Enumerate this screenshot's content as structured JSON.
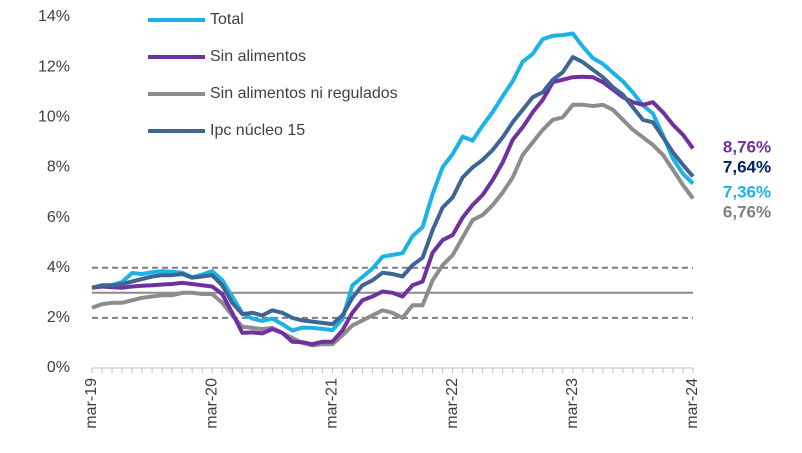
{
  "chart_data": {
    "type": "line",
    "categories": [
      "mar-19",
      null,
      null,
      null,
      null,
      null,
      null,
      null,
      null,
      null,
      null,
      null,
      "mar-20",
      null,
      null,
      null,
      null,
      null,
      null,
      null,
      null,
      null,
      null,
      null,
      "mar-21",
      null,
      null,
      null,
      null,
      null,
      null,
      null,
      null,
      null,
      null,
      null,
      "mar-22",
      null,
      null,
      null,
      null,
      null,
      null,
      null,
      null,
      null,
      null,
      null,
      "mar-23",
      null,
      null,
      null,
      null,
      null,
      null,
      null,
      null,
      null,
      null,
      null,
      "mar-24"
    ],
    "series": [
      {
        "name": "Total",
        "color": "#1ab3e8",
        "label_color": "#1ab3e8",
        "end_label": "7,36%",
        "values": [
          3.21,
          3.25,
          3.31,
          3.43,
          3.79,
          3.75,
          3.82,
          3.86,
          3.84,
          3.8,
          3.62,
          3.72,
          3.86,
          3.51,
          2.85,
          2.19,
          1.97,
          1.88,
          1.97,
          1.75,
          1.49,
          1.61,
          1.6,
          1.56,
          1.51,
          1.95,
          3.3,
          3.63,
          3.97,
          4.44,
          4.51,
          4.58,
          5.26,
          5.62,
          6.94,
          8.01,
          8.53,
          9.23,
          9.07,
          9.67,
          10.21,
          10.84,
          11.44,
          12.22,
          12.53,
          13.12,
          13.25,
          13.28,
          13.34,
          12.82,
          12.36,
          12.13,
          11.78,
          11.43,
          10.99,
          10.48,
          10.15,
          9.28,
          8.35,
          7.74,
          7.36
        ]
      },
      {
        "name": "Sin alimentos",
        "color": "#7030a0",
        "label_color": "#7030a0",
        "end_label": "8,76%",
        "values": [
          3.2,
          3.25,
          3.22,
          3.2,
          3.25,
          3.28,
          3.3,
          3.33,
          3.35,
          3.4,
          3.35,
          3.3,
          3.25,
          2.95,
          2.2,
          1.4,
          1.42,
          1.38,
          1.55,
          1.4,
          1.05,
          1.03,
          0.95,
          1.05,
          1.05,
          1.5,
          2.2,
          2.7,
          2.85,
          3.05,
          3.0,
          2.85,
          3.3,
          3.45,
          4.6,
          5.1,
          5.3,
          6.0,
          6.5,
          6.9,
          7.5,
          8.2,
          9.1,
          9.6,
          10.2,
          10.7,
          11.4,
          11.5,
          11.6,
          11.62,
          11.6,
          11.4,
          11.1,
          10.8,
          10.6,
          10.5,
          10.6,
          10.2,
          9.7,
          9.3,
          8.76
        ]
      },
      {
        "name": "Sin alimentos ni regulados",
        "color": "#8c8c8c",
        "label_color": "#808080",
        "end_label": "6,76%",
        "values": [
          2.4,
          2.55,
          2.6,
          2.6,
          2.7,
          2.8,
          2.85,
          2.9,
          2.9,
          3.0,
          3.0,
          2.95,
          2.95,
          2.6,
          2.1,
          1.65,
          1.6,
          1.55,
          1.6,
          1.4,
          1.2,
          1.0,
          0.9,
          0.95,
          0.95,
          1.3,
          1.7,
          1.9,
          2.1,
          2.3,
          2.2,
          2.0,
          2.5,
          2.5,
          3.5,
          4.1,
          4.5,
          5.2,
          5.9,
          6.1,
          6.5,
          7.0,
          7.6,
          8.5,
          9.0,
          9.5,
          9.9,
          10.0,
          10.5,
          10.5,
          10.45,
          10.5,
          10.3,
          9.9,
          9.5,
          9.2,
          8.9,
          8.5,
          7.9,
          7.3,
          6.76
        ]
      },
      {
        "name": "Ipc núcleo 15",
        "color": "#3f6594",
        "label_color": "#002060",
        "end_label": "7,64%",
        "values": [
          3.2,
          3.3,
          3.3,
          3.35,
          3.45,
          3.55,
          3.65,
          3.7,
          3.7,
          3.75,
          3.6,
          3.65,
          3.7,
          3.3,
          2.6,
          2.15,
          2.2,
          2.1,
          2.3,
          2.2,
          2.0,
          1.9,
          1.85,
          1.8,
          1.75,
          2.1,
          2.8,
          3.3,
          3.5,
          3.8,
          3.75,
          3.65,
          4.1,
          4.4,
          5.5,
          6.4,
          6.8,
          7.6,
          8.0,
          8.3,
          8.7,
          9.2,
          9.8,
          10.3,
          10.8,
          11.0,
          11.5,
          11.8,
          12.4,
          12.2,
          11.9,
          11.6,
          11.2,
          10.9,
          10.4,
          9.9,
          9.8,
          9.2,
          8.6,
          8.1,
          7.64
        ]
      }
    ],
    "reference_lines": [
      {
        "value": 2,
        "style": "dashed",
        "color": "#7f7f7f"
      },
      {
        "value": 3,
        "style": "solid",
        "color": "#8c8c8c"
      },
      {
        "value": 4,
        "style": "dashed",
        "color": "#7f7f7f"
      }
    ],
    "ylim": [
      0,
      14
    ],
    "yticks": [
      {
        "value": 0,
        "label": "0%"
      },
      {
        "value": 2,
        "label": "2%"
      },
      {
        "value": 4,
        "label": "4%"
      },
      {
        "value": 6,
        "label": "6%"
      },
      {
        "value": 8,
        "label": "8%"
      },
      {
        "value": 10,
        "label": "10%"
      },
      {
        "value": 12,
        "label": "12%"
      },
      {
        "value": 14,
        "label": "14%"
      }
    ],
    "grid": false,
    "legend": "top-left"
  }
}
